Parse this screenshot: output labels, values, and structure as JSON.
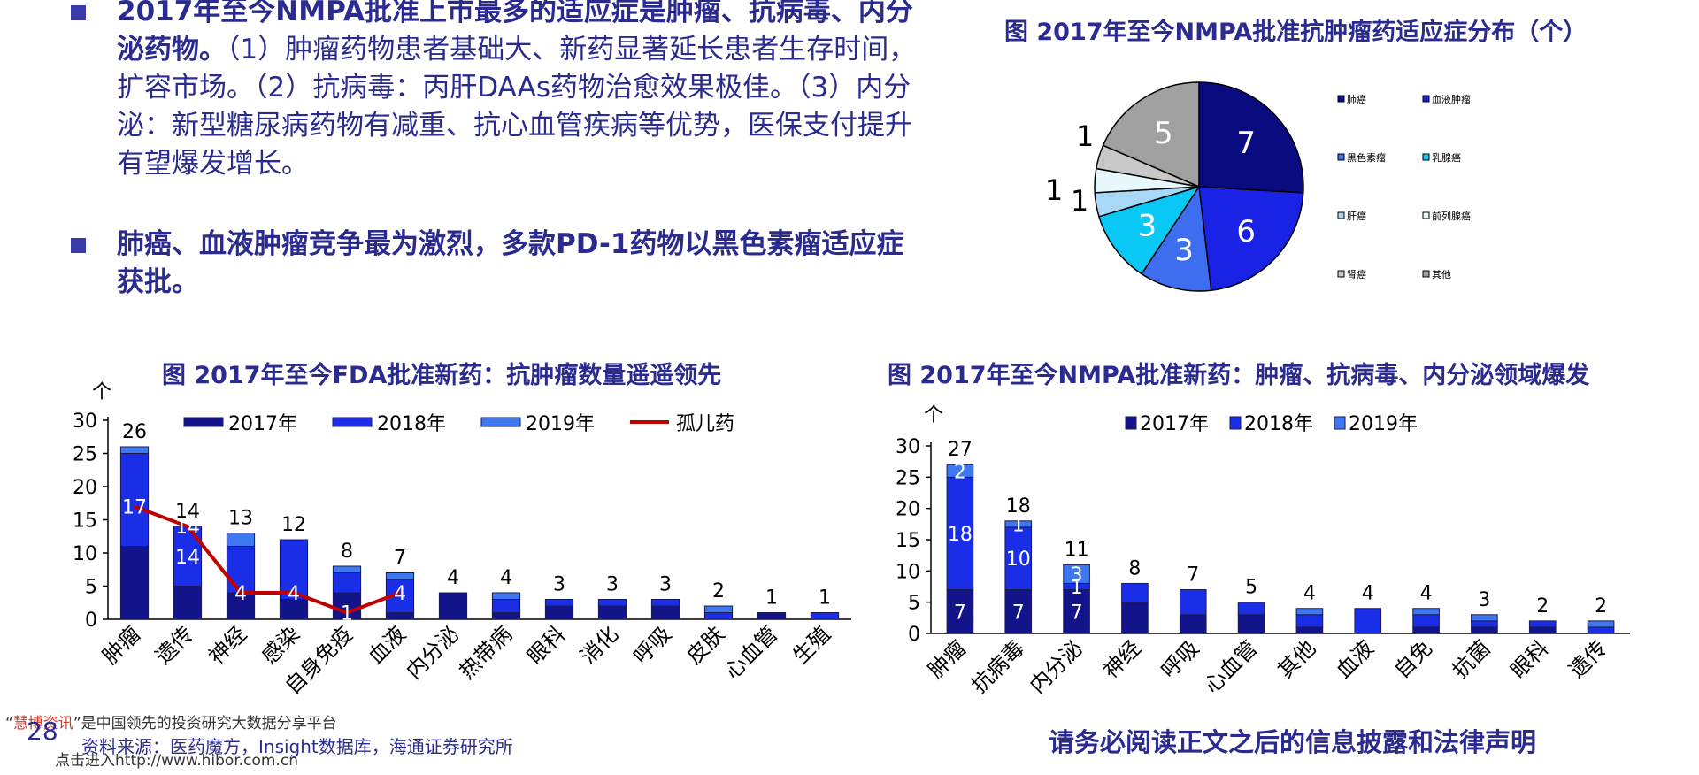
{
  "bullets": [
    {
      "bold": "2017年至今NMPA批准上市最多的适应症是肿瘤、抗病毒、内分泌药物。",
      "normal": "（1）肿瘤药物患者基础大、新药显著延长患者生存时间，扩容市场。（2）抗病毒：丙肝DAAs药物治愈效果极佳。（3）内分泌：新型糖尿病药物有减重、抗心血管疾病等优势，医保支付提升有望爆发增长。"
    },
    {
      "bold": "肺癌、血液肿瘤竞争最为激烈，多款PD-1药物以黑色素瘤适应症获批。",
      "normal": ""
    }
  ],
  "titles": {
    "pie": "图 2017年至今NMPA批准抗肿瘤药适应症分布（个）",
    "fda": "图 2017年至今FDA批准新药：抗肿瘤数量遥遥领先",
    "nmpa": "图 2017年至今NMPA批准新药：肿瘤、抗病毒、内分泌领域爆发"
  },
  "chart_data": [
    {
      "type": "pie",
      "title": "图 2017年至今NMPA批准抗肿瘤药适应症分布（个）",
      "slices": [
        {
          "label": "肺癌",
          "value": 7,
          "color": "#0b0b80"
        },
        {
          "label": "血液肿瘤",
          "value": 6,
          "color": "#1a22e6"
        },
        {
          "label": "黑色素瘤",
          "value": 3,
          "color": "#3d6ef0"
        },
        {
          "label": "乳腺癌",
          "value": 3,
          "color": "#0ac8f5"
        },
        {
          "label": "肝癌",
          "value": 1,
          "color": "#a8d8f8"
        },
        {
          "label": "前列腺癌",
          "value": 1,
          "color": "#e6f8fc"
        },
        {
          "label": "肾癌",
          "value": 1,
          "color": "#c8c8c8"
        },
        {
          "label": "其他",
          "value": 5,
          "color": "#a0a0a0"
        }
      ],
      "legend_placement": "right"
    },
    {
      "type": "bar",
      "title": "图 2017年至今FDA批准新药：抗肿瘤数量遥遥领先",
      "ylabel": "个",
      "ylim": [
        0,
        30
      ],
      "yticks": [
        0,
        5,
        10,
        15,
        20,
        25,
        30
      ],
      "stacked": true,
      "categories": [
        "肿瘤",
        "遗传",
        "神经",
        "感染",
        "自身免疫",
        "血液",
        "内分泌",
        "热带病",
        "眼科",
        "消化",
        "呼吸",
        "皮肤",
        "心血管",
        "生殖"
      ],
      "totals": [
        26,
        14,
        13,
        12,
        8,
        7,
        4,
        4,
        3,
        3,
        3,
        2,
        1,
        1
      ],
      "series": [
        {
          "name": "2017年",
          "color": "#14148a",
          "values": [
            11,
            5,
            4,
            3,
            4,
            1,
            4,
            1,
            2,
            2,
            2,
            0,
            1,
            0
          ]
        },
        {
          "name": "2018年",
          "color": "#1a2ee8",
          "values": [
            14,
            9,
            7,
            9,
            3,
            5,
            0,
            2,
            1,
            1,
            1,
            1,
            0,
            1
          ]
        },
        {
          "name": "2019年",
          "color": "#3e78f0",
          "values": [
            1,
            0,
            2,
            0,
            1,
            1,
            0,
            1,
            0,
            0,
            0,
            1,
            0,
            0
          ]
        }
      ],
      "line_series": {
        "name": "孤儿药",
        "color": "#c00000",
        "categories": [
          "肿瘤",
          "遗传",
          "神经",
          "感染",
          "自身免疫",
          "血液"
        ],
        "values": [
          17,
          14,
          4,
          4,
          1,
          4
        ]
      },
      "legend_placement": "top"
    },
    {
      "type": "bar",
      "title": "图 2017年至今NMPA批准新药：肿瘤、抗病毒、内分泌领域爆发",
      "ylabel": "个",
      "ylim": [
        0,
        30
      ],
      "yticks": [
        0,
        5,
        10,
        15,
        20,
        25,
        30
      ],
      "stacked": true,
      "categories": [
        "肿瘤",
        "抗病毒",
        "内分泌",
        "神经",
        "呼吸",
        "心血管",
        "其他",
        "血液",
        "自免",
        "抗菌",
        "眼科",
        "遗传"
      ],
      "totals": [
        27,
        18,
        11,
        8,
        7,
        5,
        4,
        4,
        4,
        3,
        2,
        2
      ],
      "series": [
        {
          "name": "2017年",
          "color": "#14148a",
          "values": [
            7,
            7,
            7,
            5,
            3,
            3,
            1,
            0,
            1,
            1,
            1,
            0
          ]
        },
        {
          "name": "2018年",
          "color": "#1a2ee8",
          "values": [
            18,
            10,
            1,
            3,
            4,
            2,
            2,
            4,
            2,
            1,
            1,
            1
          ]
        },
        {
          "name": "2019年",
          "color": "#3e78f0",
          "values": [
            2,
            1,
            3,
            0,
            0,
            0,
            1,
            0,
            1,
            1,
            0,
            1
          ]
        }
      ],
      "inline_labels": [
        {
          "category": "肿瘤",
          "series": "2017年",
          "text": "7"
        },
        {
          "category": "肿瘤",
          "series": "2018年",
          "text": "18"
        },
        {
          "category": "肿瘤",
          "series": "2019年",
          "text": "2"
        },
        {
          "category": "抗病毒",
          "series": "2017年",
          "text": "7"
        },
        {
          "category": "抗病毒",
          "series": "2018年",
          "text": "10"
        },
        {
          "category": "抗病毒",
          "series": "2019年",
          "text": "1"
        },
        {
          "category": "内分泌",
          "series": "2017年",
          "text": "7"
        },
        {
          "category": "内分泌",
          "series": "2018年",
          "text": "1"
        },
        {
          "category": "内分泌",
          "series": "2019年",
          "text": "3"
        }
      ],
      "legend_placement": "top"
    }
  ],
  "fda_inline_labels": [
    {
      "category": "遗传",
      "series": "2018年",
      "text": "14"
    }
  ],
  "footer": {
    "brand": "慧博资讯",
    "note_open": "“",
    "note_close": "”是中国领先的投资研究大数据分享平台",
    "page_number": "28",
    "source": "资料来源：医药魔方，Insight数据库，海通证券研究所",
    "url": "点击进入http://www.hibor.com.cn",
    "disclaimer": "请务必阅读正文之后的信息披露和法律声明"
  }
}
